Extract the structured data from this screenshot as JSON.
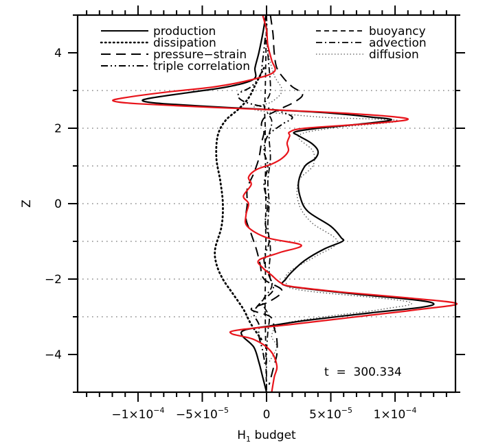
{
  "chart_data": {
    "type": "line",
    "title": "",
    "xlabel": "H",
    "xlabel_subscript": "1",
    "xlabel_suffix": " budget",
    "ylabel": "Z",
    "xlim": [
      -0.000147,
      0.000147
    ],
    "ylim": [
      -5,
      5
    ],
    "x_ticks": [
      {
        "value": -0.0001,
        "mantissa": "−1×10",
        "exp": "−4"
      },
      {
        "value": -5e-05,
        "mantissa": "−5×10",
        "exp": "−5"
      },
      {
        "value": 0,
        "mantissa": "0",
        "exp": ""
      },
      {
        "value": 5e-05,
        "mantissa": "5×10",
        "exp": "−5"
      },
      {
        "value": 0.0001,
        "mantissa": "1×10",
        "exp": "−4"
      }
    ],
    "x_minor_step": 1e-05,
    "y_ticks": [
      -4,
      -2,
      0,
      2,
      4
    ],
    "y_minor_step": 1,
    "grid_lines_z": [
      -3,
      -2,
      -1,
      0,
      1,
      2,
      3
    ],
    "grid": "horizontal dotted at integer Z",
    "annotation": "t  =  300.334",
    "legend": {
      "left": [
        "production",
        "dissipation",
        "pressure−strain",
        "triple correlation"
      ],
      "right": [
        "buoyancy",
        "advection",
        "diffusion"
      ],
      "placement": "top"
    },
    "series": [
      {
        "name": "production",
        "style": "solid",
        "color": "#000000",
        "z": [
          5,
          4.5,
          4.0,
          3.6,
          3.3,
          3.1,
          2.95,
          2.8,
          2.72,
          2.65,
          2.55,
          2.48,
          2.4,
          2.3,
          2.22,
          2.1,
          2.0,
          1.9,
          1.8,
          1.6,
          1.4,
          1.2,
          1.0,
          0.6,
          0.2,
          -0.2,
          -0.6,
          -0.9,
          -1.0,
          -1.2,
          -1.5,
          -1.8,
          -2.0,
          -2.15,
          -2.25,
          -2.4,
          -2.55,
          -2.65,
          -2.75,
          -2.9,
          -3.1,
          -3.25,
          -3.35,
          -3.5,
          -3.8,
          -4.2,
          -4.6,
          -5
        ],
        "x": [
          -5e-07,
          -3e-06,
          -6e-06,
          -9e-06,
          -1e-05,
          -3e-05,
          -6e-05,
          -9e-05,
          -9.6e-05,
          -8e-05,
          -3e-05,
          1e-05,
          5e-05,
          8e-05,
          9.7e-05,
          7e-05,
          4e-05,
          2.2e-05,
          2.5e-05,
          3.5e-05,
          4e-05,
          3.8e-05,
          3e-05,
          2.5e-05,
          2.6e-05,
          3.2e-05,
          5e-05,
          5.8e-05,
          5.9e-05,
          4.5e-05,
          3e-05,
          2e-05,
          1.5e-05,
          1.3e-05,
          3e-05,
          7e-05,
          0.000115,
          0.00013,
          0.00012,
          8e-05,
          3e-05,
          1e-06,
          -1.7e-05,
          -1.9e-05,
          -1e-05,
          -6e-06,
          -3e-06,
          0.0
        ]
      },
      {
        "name": "red_reference",
        "style": "solid",
        "color": "#e8141b",
        "z": [
          5,
          4.6,
          4.2,
          3.8,
          3.5,
          3.3,
          3.1,
          2.95,
          2.8,
          2.72,
          2.65,
          2.55,
          2.48,
          2.4,
          2.3,
          2.22,
          2.12,
          2.0,
          1.9,
          1.8,
          1.6,
          1.4,
          1.2,
          1.05,
          0.9,
          0.7,
          0.5,
          0.2,
          0.0,
          -0.3,
          -0.6,
          -0.9,
          -1.1,
          -1.3,
          -1.5,
          -1.7,
          -1.9,
          -2.1,
          -2.2,
          -2.35,
          -2.5,
          -2.65,
          -2.8,
          -3.0,
          -3.2,
          -3.35,
          -3.45,
          -3.6,
          -3.9,
          -4.3,
          -4.6,
          -5
        ],
        "x": [
          -3e-06,
          0.0,
          1e-06,
          4e-06,
          6e-06,
          -1e-05,
          -4e-05,
          -8e-05,
          -0.000112,
          -0.000119,
          -0.0001,
          -4e-05,
          1e-05,
          6e-05,
          0.0001,
          0.000109,
          8e-05,
          3e-05,
          1.8e-05,
          1.8e-05,
          1.6e-05,
          1.7e-05,
          1.2e-05,
          4e-06,
          -8e-06,
          -1.4e-05,
          -1.2e-05,
          -1.8e-05,
          -1.4e-05,
          -1.6e-05,
          -1.5e-05,
          0.0,
          2.7e-05,
          1e-05,
          -6e-06,
          -3e-06,
          4e-06,
          1.1e-05,
          2e-05,
          6e-05,
          0.00011,
          0.000148,
          0.00012,
          7e-05,
          2e-05,
          -2.2e-05,
          -2.7e-05,
          -1e-05,
          3e-06,
          8e-06,
          6e-06,
          4e-06
        ]
      },
      {
        "name": "dissipation",
        "style": "dotted",
        "color": "#000000",
        "z": [
          3.6,
          3.2,
          2.8,
          2.5,
          2.2,
          1.8,
          1.2,
          0.6,
          0.0,
          -0.6,
          -1.2,
          -1.6,
          -2.0,
          -2.4,
          -2.8,
          -3.2,
          -3.6
        ],
        "x": [
          -2e-06,
          -8e-06,
          -1.4e-05,
          -2.2e-05,
          -3.2e-05,
          -3.8e-05,
          -3.9e-05,
          -3.6e-05,
          -3.4e-05,
          -3.5e-05,
          -4e-05,
          -3.9e-05,
          -3.4e-05,
          -2.6e-05,
          -1.8e-05,
          -1.2e-05,
          -4e-06
        ]
      },
      {
        "name": "pressure−strain",
        "style": "longdash",
        "color": "#000000",
        "z": [
          5,
          4.5,
          4.0,
          3.6,
          3.3,
          3.1,
          2.9,
          2.7,
          2.5,
          2.3,
          2.1,
          1.9,
          1.6,
          1.2,
          0.8,
          0.4,
          0.0,
          -0.4,
          -0.8,
          -1.2,
          -1.6,
          -2.0,
          -2.3,
          -2.6,
          -2.8,
          -3.0,
          -3.3,
          -3.6,
          -4.0,
          -4.4,
          -4.8
        ],
        "x": [
          3e-06,
          5e-06,
          6e-06,
          8e-06,
          1.4e-05,
          2e-05,
          2.8e-05,
          2.2e-05,
          1e-05,
          -1e-06,
          -4e-06,
          -2e-06,
          -4e-06,
          -6e-06,
          -1e-05,
          -1.5e-05,
          -1.5e-05,
          -1.6e-05,
          -1.2e-05,
          -8e-06,
          -5e-06,
          -2e-06,
          1.2e-05,
          2e-06,
          -1.2e-05,
          3e-06,
          6e-06,
          8e-06,
          8e-06,
          5e-06,
          2e-06
        ]
      },
      {
        "name": "triple correlation",
        "style": "dashdotdot",
        "color": "#000000",
        "z": [
          4.4,
          3.8,
          3.4,
          3.1,
          2.9,
          2.7,
          2.5,
          2.3,
          2.1,
          1.8,
          1.4,
          1.0,
          0.5,
          0.0,
          -0.5,
          -1.0,
          -1.5,
          -2.0,
          -2.3,
          -2.6,
          -2.9,
          -3.2,
          -3.5,
          -3.9,
          -4.3
        ],
        "x": [
          -1e-06,
          -3e-06,
          -5e-06,
          -1.2e-05,
          -2.2e-05,
          -1.7e-05,
          5e-06,
          2e-05,
          1.2e-05,
          1e-06,
          -2e-06,
          1e-06,
          -2e-06,
          1e-06,
          -1e-06,
          2e-06,
          -2e-06,
          3e-06,
          5e-06,
          -4e-06,
          -1e-05,
          -6e-06,
          -6e-06,
          -3e-06,
          -1e-06
        ]
      },
      {
        "name": "buoyancy",
        "style": "dash",
        "color": "#000000",
        "z": [
          5,
          4.0,
          3.0,
          2.5,
          2.0,
          1.5,
          1.0,
          0.5,
          0.0,
          -0.5,
          -1.0,
          -1.5,
          -2.0,
          -2.5,
          -3.0,
          -3.5,
          -4.0,
          -4.5,
          -5
        ],
        "x": [
          0.0,
          -5e-07,
          -1e-06,
          -1.5e-06,
          -1e-06,
          -1.2e-06,
          -8e-07,
          -1e-06,
          -5e-07,
          -8e-07,
          -5e-07,
          -1e-06,
          -8e-07,
          -1.2e-06,
          -1e-06,
          -8e-07,
          -5e-07,
          -3e-07,
          0.0
        ]
      },
      {
        "name": "advection",
        "style": "dashdot",
        "color": "#000000",
        "z": [
          5,
          4.0,
          3.0,
          2.6,
          2.2,
          1.8,
          1.2,
          0.6,
          0.0,
          -0.6,
          -1.2,
          -1.8,
          -2.2,
          -2.6,
          -3.0,
          -3.4,
          -4.0,
          -5
        ],
        "x": [
          0.0,
          1e-06,
          3e-06,
          -2e-06,
          4e-06,
          2e-06,
          3e-06,
          1e-06,
          2e-06,
          1e-06,
          3e-06,
          2e-06,
          4e-06,
          -3e-06,
          2e-06,
          1e-06,
          0.0,
          0.0
        ]
      },
      {
        "name": "diffusion",
        "style": "finedot",
        "color": "#555555",
        "z": [
          4.0,
          3.4,
          3.0,
          2.7,
          2.5,
          2.3,
          2.2,
          2.0,
          1.8,
          1.4,
          1.0,
          0.6,
          0.0,
          -0.5,
          -1.0,
          -1.4,
          -1.8,
          -2.1,
          -2.3,
          -2.6,
          -2.8,
          -3.0,
          -3.2,
          -3.5,
          -3.8,
          -4.2
        ],
        "x": [
          1e-06,
          6e-06,
          1.2e-05,
          4e-06,
          -1e-05,
          4e-05,
          0.000103,
          5e-05,
          2.5e-05,
          3.6e-05,
          3.6e-05,
          2.5e-05,
          2.5e-05,
          3.5e-05,
          5.5e-05,
          3.8e-05,
          1.8e-05,
          1.5e-05,
          2.8e-05,
          0.00011,
          9e-05,
          4.5e-05,
          1.2e-05,
          4e-06,
          8e-06,
          2e-06
        ]
      }
    ]
  }
}
